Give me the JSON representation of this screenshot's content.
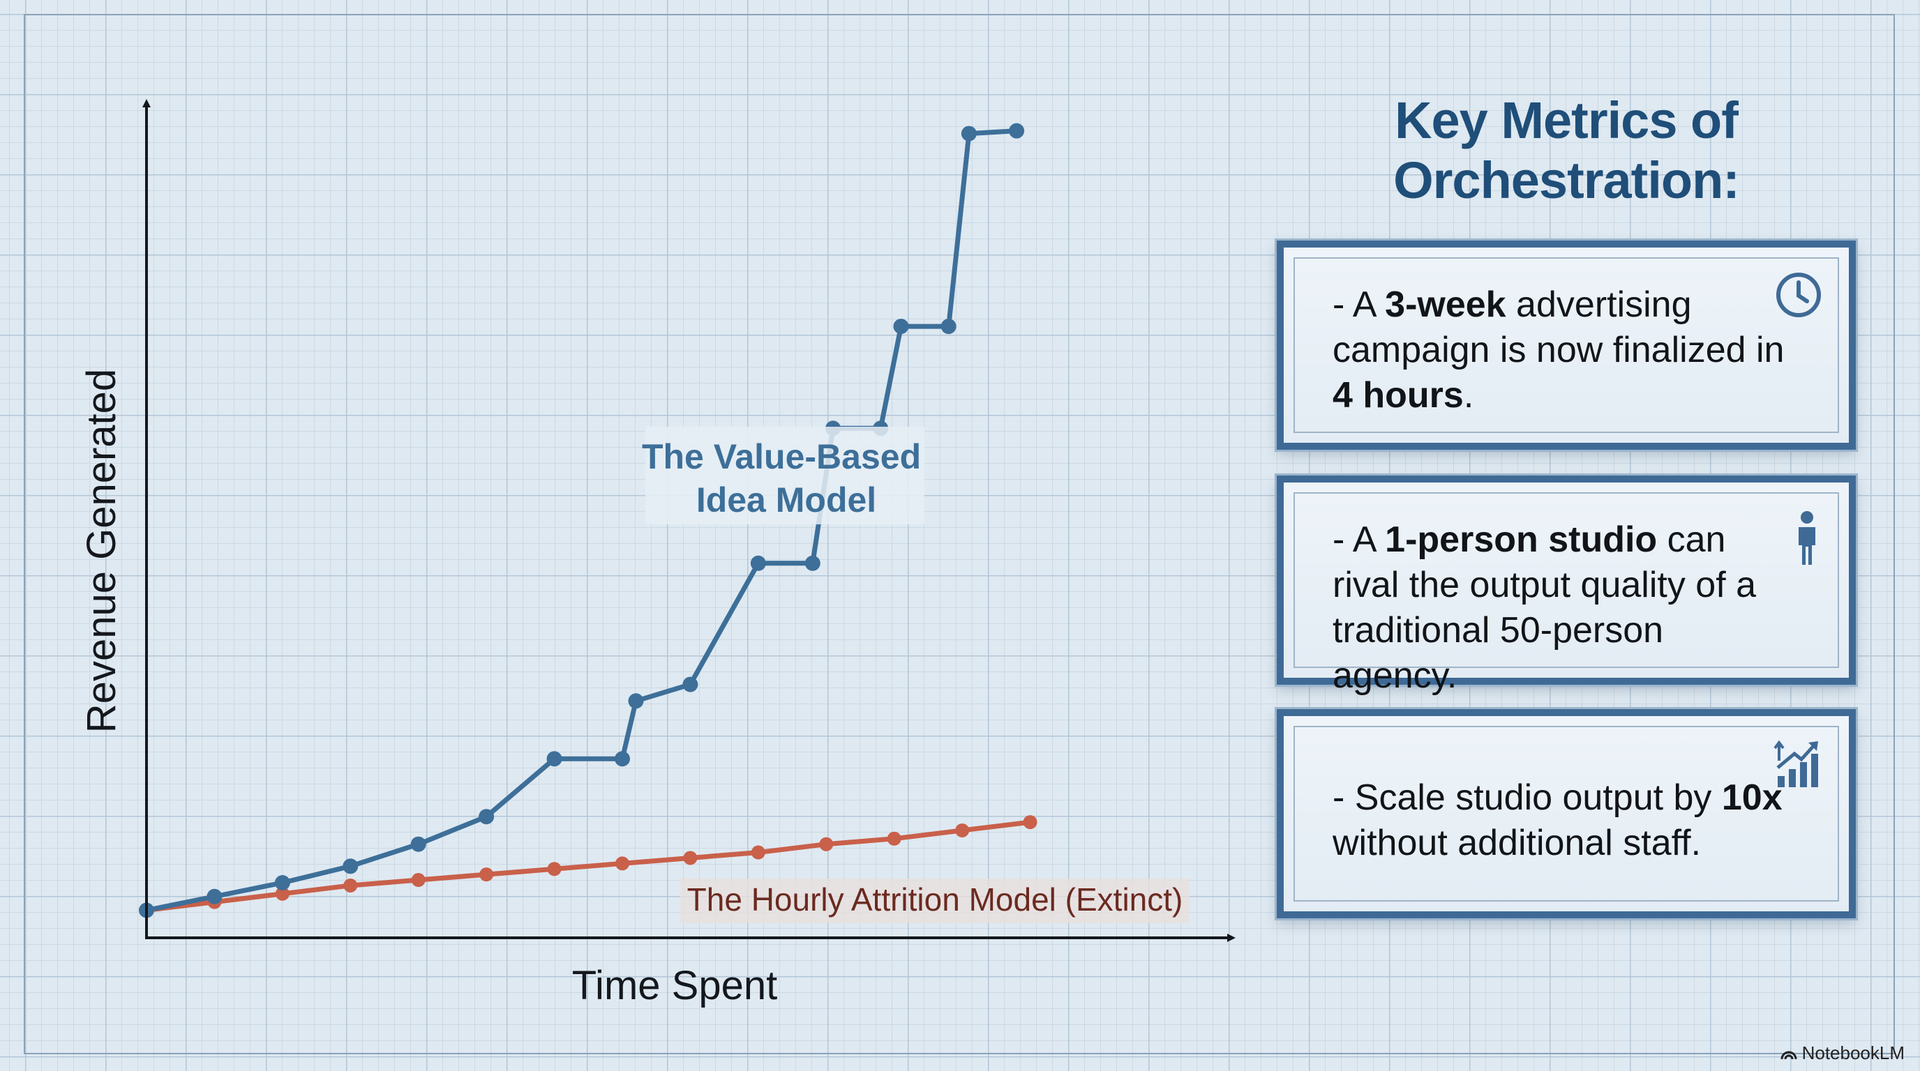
{
  "chart_data": {
    "type": "line",
    "xlabel": "Time Spent",
    "ylabel": "Revenue Generated",
    "grid": true,
    "xlim": [
      0,
      14
    ],
    "ylim": [
      0,
      30
    ],
    "series": [
      {
        "name": "The Value-Based Idea Model",
        "color": "#3d6f99",
        "points": [
          [
            0,
            1.0
          ],
          [
            1,
            1.5
          ],
          [
            2,
            2.0
          ],
          [
            3,
            2.6
          ],
          [
            4,
            3.4
          ],
          [
            5,
            4.4
          ],
          [
            6,
            6.5
          ],
          [
            7,
            6.5
          ],
          [
            7.2,
            8.6
          ],
          [
            8,
            9.2
          ],
          [
            9,
            13.6
          ],
          [
            9.8,
            13.6
          ],
          [
            10.1,
            18.5
          ],
          [
            10.8,
            18.5
          ],
          [
            11.1,
            22.2
          ],
          [
            11.8,
            22.2
          ],
          [
            12.1,
            29.2
          ],
          [
            12.8,
            29.3
          ]
        ]
      },
      {
        "name": "The Hourly Attrition Model (Extinct)",
        "color": "#c9604a",
        "points": [
          [
            0,
            1.0
          ],
          [
            1,
            1.3
          ],
          [
            2,
            1.6
          ],
          [
            3,
            1.9
          ],
          [
            4,
            2.1
          ],
          [
            5,
            2.3
          ],
          [
            6,
            2.5
          ],
          [
            7,
            2.7
          ],
          [
            8,
            2.9
          ],
          [
            9,
            3.1
          ],
          [
            10,
            3.4
          ],
          [
            11,
            3.6
          ],
          [
            12,
            3.9
          ],
          [
            13,
            4.2
          ]
        ]
      }
    ]
  },
  "metrics": {
    "title_line1": "Key Metrics of",
    "title_line2": "Orchestration:",
    "cards": [
      {
        "parts": [
          "- A ",
          "3-week",
          " advertising campaign is now finalized in ",
          "4 hours",
          "."
        ],
        "icon": "clock-icon"
      },
      {
        "parts": [
          "- A ",
          "1-person studio",
          " can rival the output quality of a traditional 50-person agency."
        ],
        "icon": "person-icon"
      },
      {
        "parts": [
          "- Scale studio output by ",
          "10x",
          " without additional staff."
        ],
        "icon": "growth-chart-icon"
      }
    ]
  },
  "watermark": "NotebookLM",
  "colors": {
    "accent_blue": "#3d6f99",
    "accent_red": "#c9604a",
    "title_blue": "#1f4e79",
    "card_border": "#3f6a96"
  }
}
